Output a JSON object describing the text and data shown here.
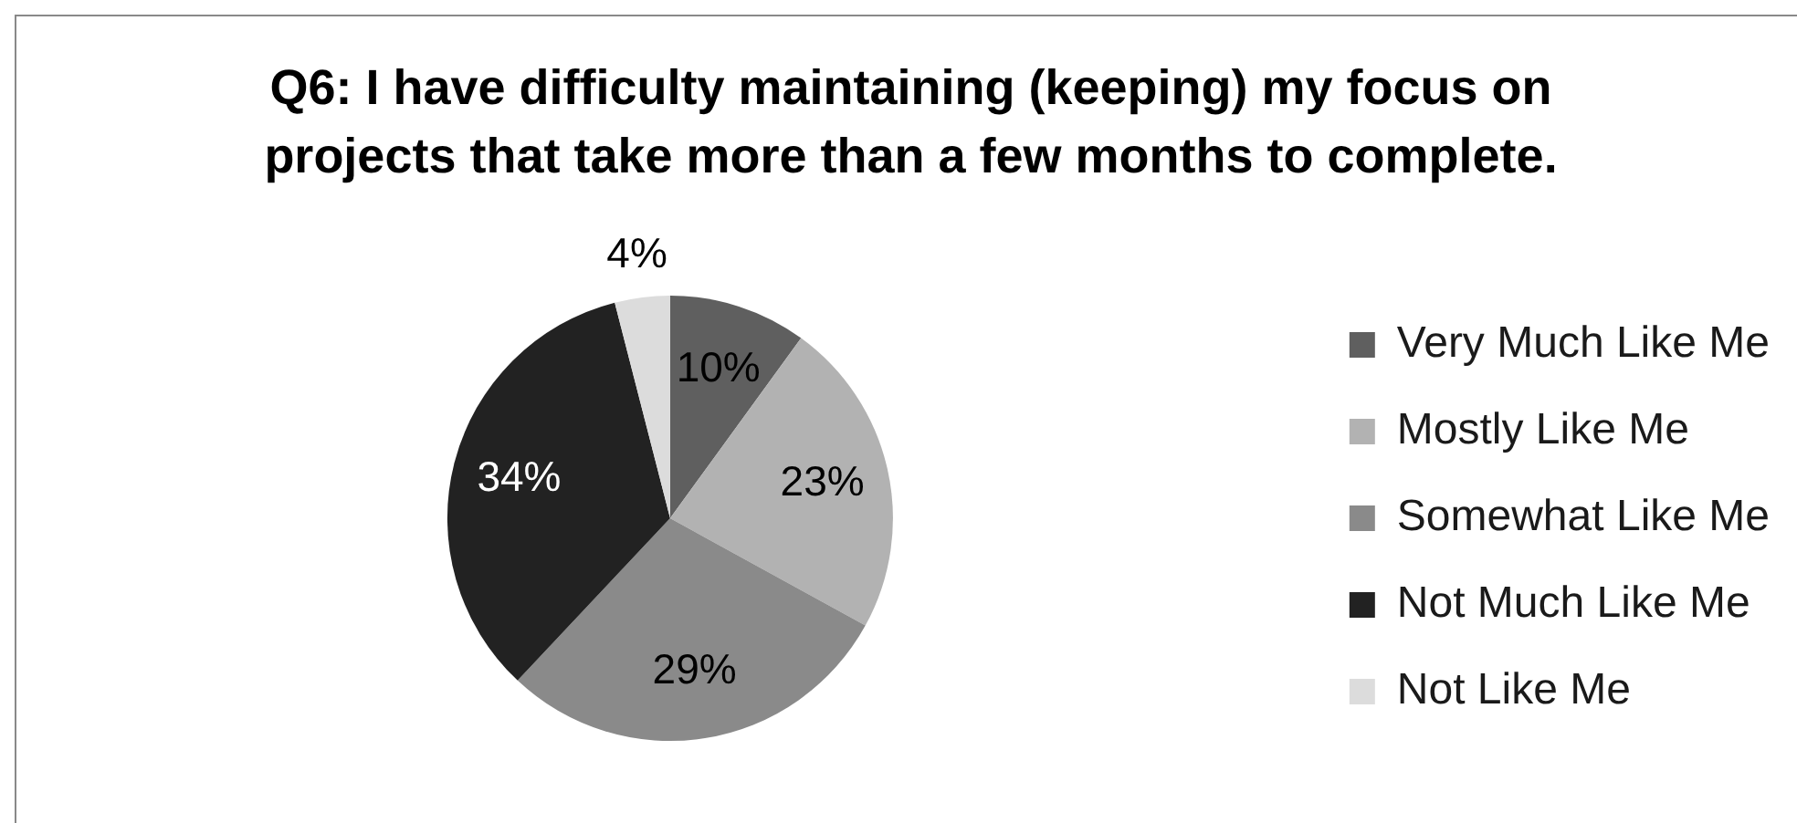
{
  "chart_data": {
    "type": "pie",
    "title": "Q6: I have difficulty maintaining (keeping) my focus on projects that take more than a few months to complete.",
    "categories": [
      "Very Much Like Me",
      "Mostly Like Me",
      "Somewhat Like Me",
      "Not Much Like Me",
      "Not Like Me"
    ],
    "values": [
      10,
      23,
      29,
      34,
      4
    ],
    "value_labels": [
      "10%",
      "23%",
      "29%",
      "34%",
      "4%"
    ],
    "colors": [
      "#5f5f5f",
      "#b2b2b2",
      "#8a8a8a",
      "#222222",
      "#dcdcdc"
    ],
    "legend": "right"
  }
}
